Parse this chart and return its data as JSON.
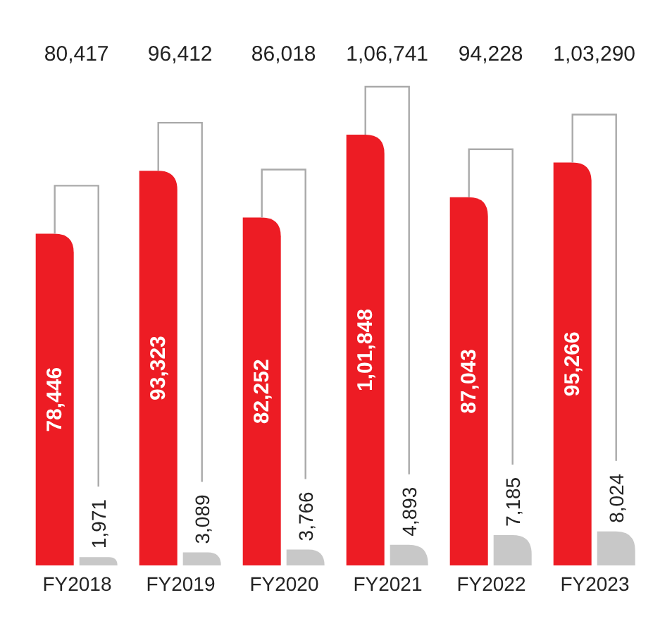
{
  "chart_data": {
    "type": "bar",
    "categories": [
      "FY2018",
      "FY2019",
      "FY2020",
      "FY2021",
      "FY2022",
      "FY2023"
    ],
    "series": [
      {
        "color": "#ed1c24",
        "values": [
          78446,
          93323,
          82252,
          101848,
          87043,
          95266
        ],
        "value_labels": [
          "78,446",
          "93,323",
          "82,252",
          "1,01,848",
          "87,043",
          "95,266"
        ]
      },
      {
        "color": "#c8c8c8",
        "values": [
          1971,
          3089,
          3766,
          4893,
          7185,
          8024
        ],
        "value_labels": [
          "1,971",
          "3,089",
          "3,766",
          "4,893",
          "7,185",
          "8,024"
        ]
      }
    ],
    "tick_labels": "x",
    "annotations": [
      "80,417",
      "96,412",
      "86,018",
      "1,06,741",
      "94,228",
      "1,03,290"
    ]
  }
}
